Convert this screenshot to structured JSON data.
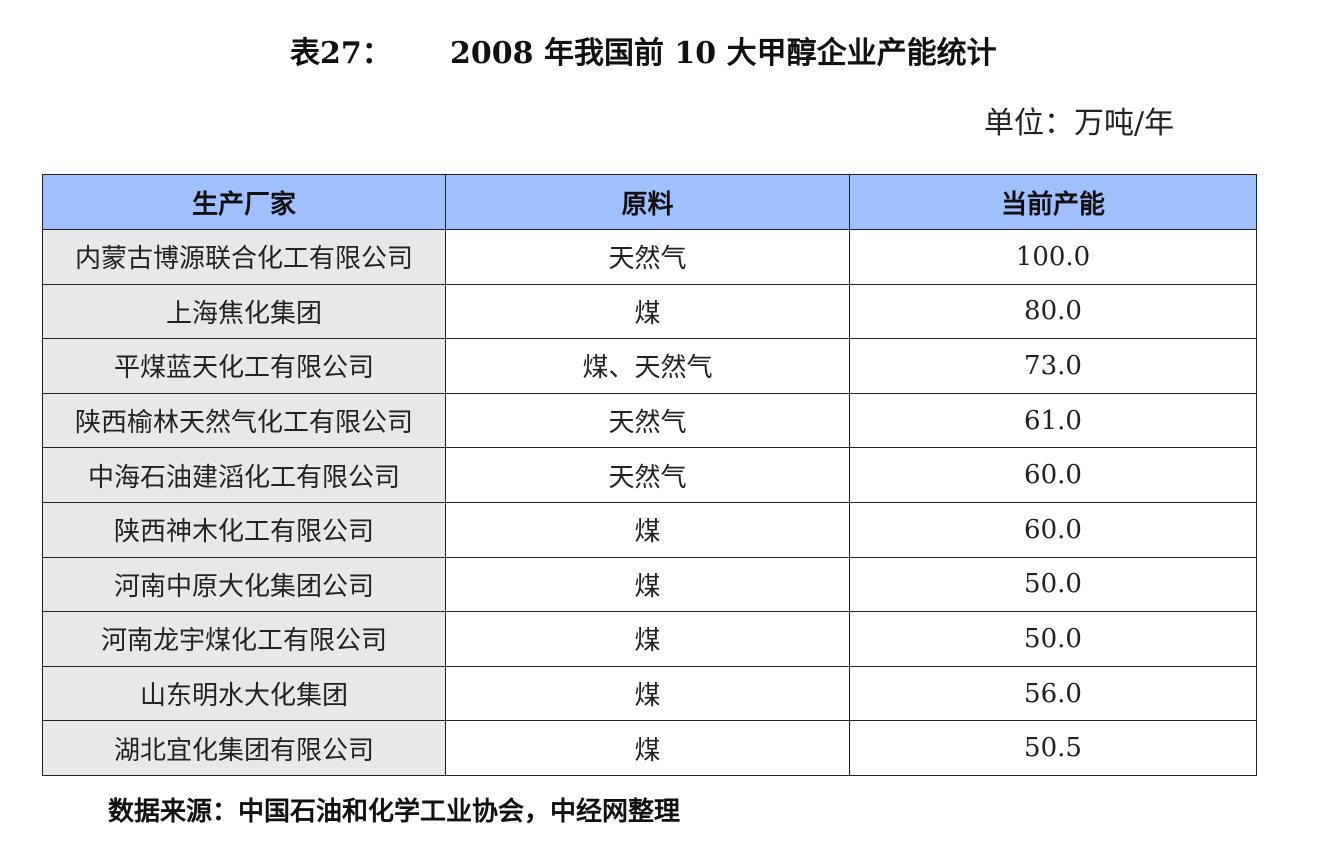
{
  "title": {
    "label": "表27：",
    "text": "2008 年我国前 10 大甲醇企业产能统计"
  },
  "unit": "单位：万吨/年",
  "table": {
    "headers": [
      "生产厂家",
      "原料",
      "当前产能"
    ],
    "rows": [
      {
        "company": "内蒙古博源联合化工有限公司",
        "material": "天然气",
        "capacity": "100.0"
      },
      {
        "company": "上海焦化集团",
        "material": "煤",
        "capacity": "80.0"
      },
      {
        "company": "平煤蓝天化工有限公司",
        "material": "煤、天然气",
        "capacity": "73.0"
      },
      {
        "company": "陕西榆林天然气化工有限公司",
        "material": "天然气",
        "capacity": "61.0"
      },
      {
        "company": "中海石油建滔化工有限公司",
        "material": "天然气",
        "capacity": "60.0"
      },
      {
        "company": "陕西神木化工有限公司",
        "material": "煤",
        "capacity": "60.0"
      },
      {
        "company": "河南中原大化集团公司",
        "material": "煤",
        "capacity": "50.0"
      },
      {
        "company": "河南龙宇煤化工有限公司",
        "material": "煤",
        "capacity": "50.0"
      },
      {
        "company": "山东明水大化集团",
        "material": "煤",
        "capacity": "56.0"
      },
      {
        "company": "湖北宜化集团有限公司",
        "material": "煤",
        "capacity": "50.5"
      }
    ]
  },
  "source": "数据来源：中国石油和化学工业协会，中经网整理"
}
